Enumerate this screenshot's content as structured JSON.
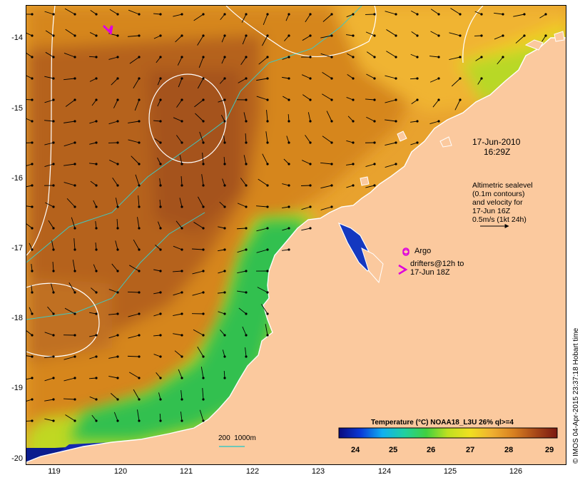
{
  "map": {
    "date": "17-Jun-2010",
    "time": "16:29Z",
    "sealevel_note": "Altimetric sealevel\n(0.1m contours)\nand velocity for\n17-Jun 16Z\n0.5m/s (1kt 24h)",
    "argo_label": "Argo",
    "drifters_label": "drifters@12h to\n17-Jun 18Z",
    "bathy_label": "200  1000m",
    "colorbar_title": "Temperature (°C) NOAA18_L3U 26% ql>=4",
    "colorbar_ticks": [
      "24",
      "25",
      "26",
      "27",
      "28",
      "29"
    ],
    "lat_labels": [
      "-14",
      "-15",
      "-16",
      "-17",
      "-18",
      "-19",
      "-20"
    ],
    "lon_labels": [
      "119",
      "120",
      "121",
      "122",
      "123",
      "124",
      "125",
      "126"
    ],
    "stamp": "© IMOS 04-Apr-2015 23:37:18 Hobart time"
  },
  "colors": {
    "land": "#fbc99e",
    "argo": "#dd00dd",
    "contour": "#ffffff",
    "isobath": "#40c8c0"
  }
}
